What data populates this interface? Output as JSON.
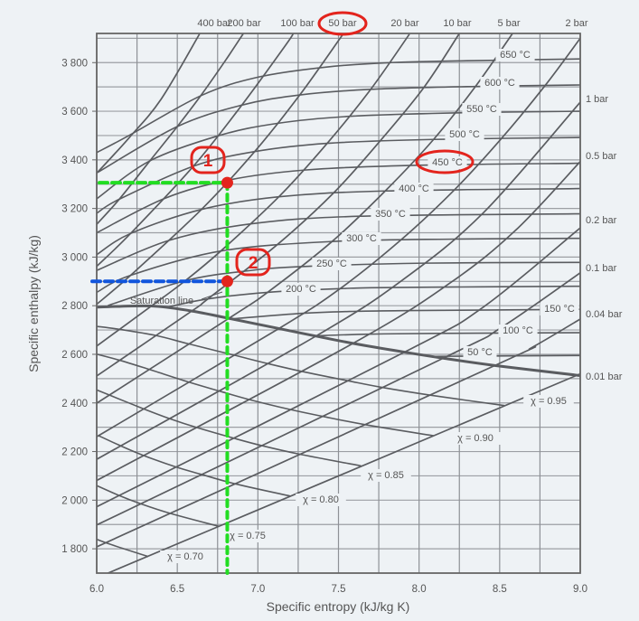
{
  "chart_data": {
    "type": "line",
    "title": "",
    "xlabel": "Specific entropy (kJ/kg K)",
    "ylabel": "Specific enthalpy (kJ/kg)",
    "xlim": [
      6.0,
      9.0
    ],
    "ylim": [
      1700,
      3920
    ],
    "grid": true,
    "x_ticks": [
      "6.0",
      "6.5",
      "7.0",
      "7.5",
      "8.0",
      "8.5",
      "9.0"
    ],
    "x_tick_values": [
      6.0,
      6.5,
      7.0,
      7.5,
      8.0,
      8.5,
      9.0
    ],
    "y_ticks": [
      "1 800",
      "2 000",
      "2 200",
      "2 400",
      "2 600",
      "2 800",
      "3 000",
      "3 200",
      "3 400",
      "3 600",
      "3 800"
    ],
    "y_tick_values": [
      1800,
      2000,
      2200,
      2400,
      2600,
      2800,
      3000,
      3200,
      3400,
      3600,
      3800
    ],
    "isobars": [
      {
        "name": "400 bar",
        "points": [
          [
            6.0,
            3345
          ],
          [
            6.2,
            3490
          ],
          [
            6.4,
            3650
          ],
          [
            6.64,
            3920
          ]
        ]
      },
      {
        "name": "200 bar",
        "points": [
          [
            6.0,
            3135
          ],
          [
            6.14,
            3238
          ],
          [
            6.33,
            3396
          ],
          [
            6.5,
            3537
          ],
          [
            6.65,
            3668
          ],
          [
            6.8,
            3810
          ],
          [
            6.91,
            3920
          ]
        ]
      },
      {
        "name": "100 bar",
        "points": [
          [
            6.0,
            2962
          ],
          [
            6.21,
            3097
          ],
          [
            6.6,
            3374
          ],
          [
            6.9,
            3625
          ],
          [
            7.17,
            3870
          ],
          [
            7.22,
            3920
          ]
        ]
      },
      {
        "name": "50 bar",
        "points": [
          [
            6.0,
            2806
          ],
          [
            6.21,
            2925
          ],
          [
            6.65,
            3196
          ],
          [
            6.98,
            3434
          ],
          [
            7.26,
            3667
          ],
          [
            7.51,
            3900
          ],
          [
            7.53,
            3920
          ]
        ]
      },
      {
        "name": "20 bar",
        "points": [
          [
            6.0,
            2634
          ],
          [
            6.34,
            2799
          ],
          [
            6.55,
            2903
          ],
          [
            6.77,
            3025
          ],
          [
            7.13,
            3248
          ],
          [
            7.43,
            3468
          ],
          [
            7.7,
            3690
          ],
          [
            7.94,
            3917
          ]
        ]
      },
      {
        "name": "10 bar",
        "points": [
          [
            6.0,
            2511
          ],
          [
            6.59,
            2778
          ],
          [
            6.69,
            2828
          ],
          [
            7.12,
            3051
          ],
          [
            7.47,
            3264
          ],
          [
            7.76,
            3479
          ],
          [
            8.03,
            3698
          ],
          [
            8.25,
            3920
          ]
        ]
      },
      {
        "name": "5 bar",
        "points": [
          [
            6.0,
            2399
          ],
          [
            6.82,
            2748
          ],
          [
            7.06,
            2855
          ],
          [
            7.46,
            3064
          ],
          [
            7.79,
            3272
          ],
          [
            8.09,
            3484
          ],
          [
            8.35,
            3702
          ],
          [
            8.58,
            3920
          ]
        ]
      },
      {
        "name": "2 bar",
        "points": [
          [
            6.0,
            2261
          ],
          [
            7.13,
            2706
          ],
          [
            7.51,
            2870
          ],
          [
            7.89,
            3072
          ],
          [
            8.22,
            3277
          ],
          [
            8.51,
            3487
          ],
          [
            8.78,
            3704
          ],
          [
            9.0,
            3900
          ]
        ]
      },
      {
        "name": "1 bar",
        "points": [
          [
            6.0,
            2168
          ],
          [
            7.36,
            2675
          ],
          [
            7.9,
            2907
          ],
          [
            8.4,
            3183
          ],
          [
            9.0,
            3637
          ]
        ]
      },
      {
        "name": "0.5 bar",
        "points": [
          [
            6.0,
            2081
          ],
          [
            7.59,
            2645
          ],
          [
            8.2,
            2897
          ],
          [
            8.6,
            3111
          ],
          [
            9.0,
            3393
          ]
        ]
      },
      {
        "name": "0.2 bar",
        "points": [
          [
            6.0,
            1973
          ],
          [
            7.91,
            2609
          ],
          [
            8.4,
            2795
          ],
          [
            9.0,
            3120
          ]
        ]
      },
      {
        "name": "0.1 bar",
        "points": [
          [
            6.0,
            1898
          ],
          [
            8.15,
            2584
          ],
          [
            8.5,
            2706
          ],
          [
            9.0,
            2935
          ]
        ]
      },
      {
        "name": "0.04 bar",
        "points": [
          [
            6.0,
            1808
          ],
          [
            8.47,
            2554
          ],
          [
            8.7,
            2628
          ],
          [
            9.0,
            2745
          ]
        ]
      },
      {
        "name": "0.01 bar",
        "points": [
          [
            6.07,
            1700
          ],
          [
            8.98,
            2514
          ],
          [
            9.0,
            2525
          ]
        ]
      }
    ],
    "isotherms": [
      {
        "name": "650 °C",
        "points": [
          [
            6.0,
            3430
          ],
          [
            6.2,
            3500
          ],
          [
            6.65,
            3665
          ],
          [
            7.0,
            3740
          ],
          [
            7.4,
            3780
          ],
          [
            7.82,
            3800
          ],
          [
            8.5,
            3810
          ],
          [
            9.0,
            3815
          ]
        ]
      },
      {
        "name": "600 °C",
        "points": [
          [
            6.01,
            3350
          ],
          [
            6.5,
            3537
          ],
          [
            6.9,
            3625
          ],
          [
            7.26,
            3667
          ],
          [
            7.7,
            3690
          ],
          [
            8.35,
            3702
          ],
          [
            9.0,
            3708
          ]
        ]
      },
      {
        "name": "550 °C",
        "points": [
          [
            6.0,
            3240
          ],
          [
            6.33,
            3396
          ],
          [
            6.76,
            3500
          ],
          [
            7.12,
            3550
          ],
          [
            7.57,
            3579
          ],
          [
            8.22,
            3593
          ],
          [
            9.0,
            3600
          ]
        ]
      },
      {
        "name": "500 °C",
        "points": [
          [
            6.0,
            3180
          ],
          [
            6.14,
            3238
          ],
          [
            6.6,
            3374
          ],
          [
            6.98,
            3434
          ],
          [
            7.43,
            3468
          ],
          [
            8.09,
            3484
          ],
          [
            9.0,
            3492
          ]
        ]
      },
      {
        "name": "450 °C",
        "points": [
          [
            6.0,
            3100
          ],
          [
            6.42,
            3241
          ],
          [
            6.82,
            3317
          ],
          [
            7.29,
            3358
          ],
          [
            7.94,
            3377
          ],
          [
            9.0,
            3386
          ]
        ]
      },
      {
        "name": "400 °C",
        "points": [
          [
            6.0,
            3010
          ],
          [
            6.21,
            3097
          ],
          [
            6.65,
            3196
          ],
          [
            7.13,
            3248
          ],
          [
            7.79,
            3272
          ],
          [
            9.0,
            3282
          ]
        ]
      },
      {
        "name": "350 °C",
        "points": [
          [
            6.0,
            2945
          ],
          [
            6.45,
            3069
          ],
          [
            6.96,
            3137
          ],
          [
            7.63,
            3168
          ],
          [
            9.0,
            3178
          ]
        ]
      },
      {
        "name": "300 °C",
        "points": [
          [
            6.0,
            2855
          ],
          [
            6.21,
            2925
          ],
          [
            6.77,
            3025
          ],
          [
            7.46,
            3064
          ],
          [
            8.22,
            3074
          ],
          [
            9.0,
            3077
          ]
        ]
      },
      {
        "name": "250 °C",
        "points": [
          [
            6.07,
            2801
          ],
          [
            6.55,
            2903
          ],
          [
            6.93,
            2943
          ],
          [
            7.27,
            2961
          ],
          [
            8.03,
            2975
          ],
          [
            9.0,
            2978
          ]
        ]
      },
      {
        "name": "200 °C",
        "points": [
          [
            6.43,
            2793
          ],
          [
            6.69,
            2828
          ],
          [
            7.06,
            2855
          ],
          [
            7.51,
            2870
          ],
          [
            7.83,
            2875
          ],
          [
            9.0,
            2880
          ]
        ]
      },
      {
        "name": "150 °C",
        "points": [
          [
            6.84,
            2746
          ],
          [
            7.28,
            2769
          ],
          [
            7.61,
            2777
          ],
          [
            7.94,
            2780
          ],
          [
            9.0,
            2785
          ]
        ]
      },
      {
        "name": "100 °C",
        "points": [
          [
            7.35,
            2676
          ],
          [
            7.69,
            2683
          ],
          [
            8.12,
            2686
          ],
          [
            9.0,
            2689
          ]
        ]
      },
      {
        "name": "50 °C",
        "points": [
          [
            8.07,
            2591
          ],
          [
            8.17,
            2592
          ],
          [
            9.0,
            2595
          ]
        ]
      }
    ],
    "quality_lines": [
      {
        "name": "χ = 0.95",
        "points": [
          [
            6.0,
            2715
          ],
          [
            6.14,
            2703
          ],
          [
            6.37,
            2677
          ],
          [
            6.57,
            2643
          ],
          [
            6.85,
            2597
          ],
          [
            7.06,
            2562
          ],
          [
            7.27,
            2530
          ],
          [
            7.56,
            2491
          ],
          [
            7.77,
            2464
          ],
          [
            8.07,
            2432
          ],
          [
            8.53,
            2389
          ]
        ]
      },
      {
        "name": "χ = 0.90",
        "points": [
          [
            5.95,
            2609
          ],
          [
            6.14,
            2576
          ],
          [
            6.33,
            2537
          ],
          [
            6.57,
            2486
          ],
          [
            6.76,
            2449
          ],
          [
            6.94,
            2415
          ],
          [
            7.2,
            2373
          ],
          [
            7.4,
            2345
          ],
          [
            7.67,
            2310
          ],
          [
            8.09,
            2265
          ]
        ]
      },
      {
        "name": "χ = 0.85",
        "points": [
          [
            5.92,
            2475
          ],
          [
            6.08,
            2432
          ],
          [
            6.29,
            2376
          ],
          [
            6.45,
            2336
          ],
          [
            6.62,
            2299
          ],
          [
            6.85,
            2255
          ],
          [
            7.02,
            2225
          ],
          [
            7.26,
            2189
          ],
          [
            7.64,
            2141
          ]
        ]
      },
      {
        "name": "χ = 0.80",
        "points": [
          [
            6.01,
            2266
          ],
          [
            6.15,
            2223
          ],
          [
            6.29,
            2184
          ],
          [
            6.49,
            2137
          ],
          [
            6.65,
            2106
          ],
          [
            6.86,
            2067
          ],
          [
            7.2,
            2017
          ]
        ]
      },
      {
        "name": "χ = 0.75",
        "points": [
          [
            5.97,
            2069
          ],
          [
            6.14,
            2019
          ],
          [
            6.27,
            1986
          ],
          [
            6.46,
            1945
          ],
          [
            6.76,
            1892
          ]
        ]
      },
      {
        "name": "χ = 0.70",
        "points": [
          [
            5.9,
            1866
          ],
          [
            6.06,
            1824
          ],
          [
            6.32,
            1768
          ]
        ]
      }
    ],
    "saturation_line": {
      "name": "Saturation line",
      "points": [
        [
          6.0,
          2794
        ],
        [
          6.34,
          2799
        ],
        [
          6.59,
          2778
        ],
        [
          6.82,
          2748
        ],
        [
          7.13,
          2706
        ],
        [
          7.36,
          2675
        ],
        [
          7.59,
          2645
        ],
        [
          7.91,
          2609
        ],
        [
          8.15,
          2584
        ],
        [
          8.47,
          2554
        ],
        [
          8.98,
          2514
        ],
        [
          9.0,
          2513
        ]
      ]
    },
    "annotations": {
      "points": [
        {
          "label": "1",
          "s": 6.81,
          "h": 3306
        },
        {
          "label": "2",
          "s": 6.81,
          "h": 2900
        }
      ],
      "highlighted": [
        "50 bar",
        "450 °C"
      ],
      "colors": {
        "marker": "#e3241d",
        "path_1": "#22dd22",
        "path_2": "#1155dd"
      }
    },
    "colors": {
      "background": "#eef2f5",
      "curve": "#5a5c60",
      "grid": "#8e9196"
    }
  }
}
